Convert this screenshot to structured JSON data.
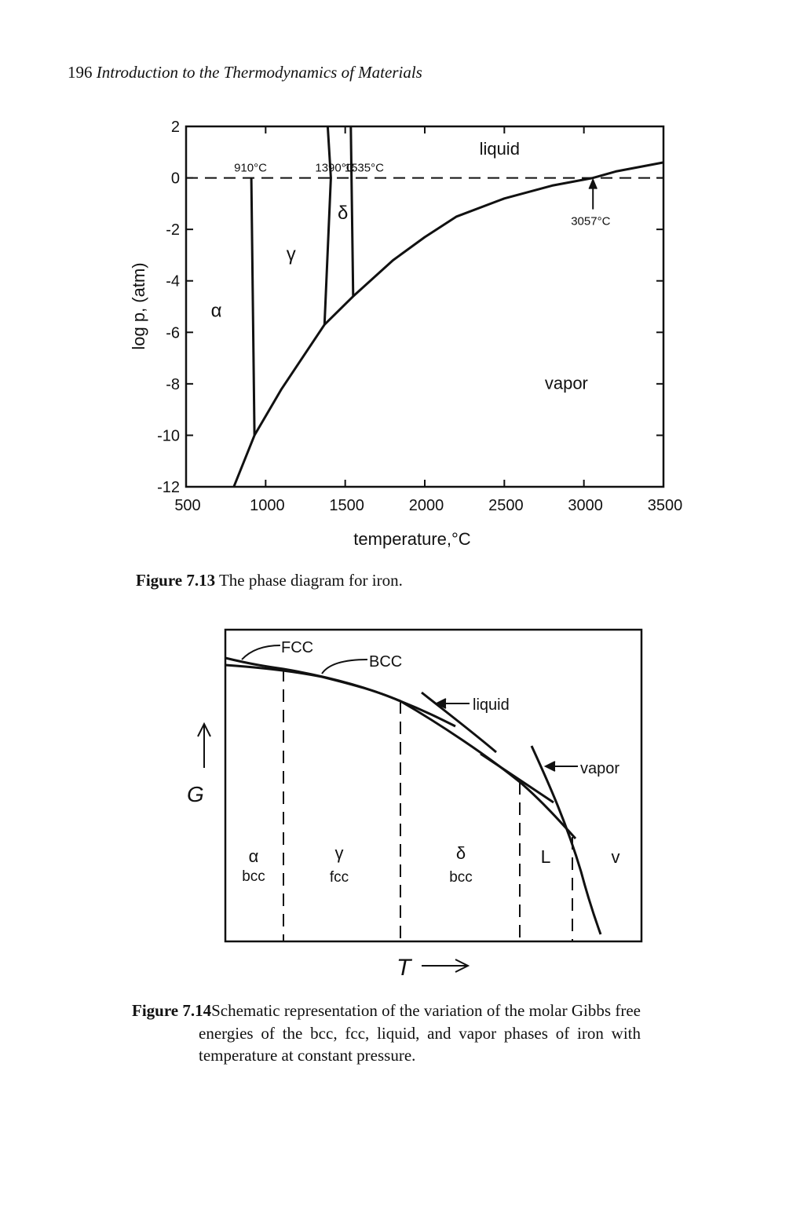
{
  "header": {
    "page_number": "196",
    "book_title": "Introduction to the Thermodynamics of Materials"
  },
  "figure_7_13": {
    "caption_label": "Figure 7.13",
    "caption_text": "The phase diagram for iron.",
    "chart_data": {
      "type": "line",
      "xlabel": "temperature,°C",
      "ylabel": "log p, (atm)",
      "xlim": [
        500,
        3500
      ],
      "ylim": [
        -12,
        2
      ],
      "x_ticks": [
        "500",
        "1000",
        "1500",
        "2000",
        "2500",
        "3000",
        "3500"
      ],
      "y_ticks": [
        "2",
        "0",
        "-2",
        "-4",
        "-6",
        "-8",
        "-10",
        "-12"
      ],
      "reference_line": {
        "y": 0,
        "style": "dashed"
      },
      "series": [
        {
          "x": [
            800,
            930,
            1100,
            1370,
            1550,
            1800,
            2000,
            2200,
            2500,
            2800,
            3057,
            3200,
            3500
          ],
          "y": [
            -12,
            -10,
            -8.2,
            -5.7,
            -4.6,
            -3.2,
            -2.3,
            -1.5,
            -0.8,
            -0.3,
            0,
            0.25,
            0.6
          ]
        },
        {
          "x": [
            910,
            930
          ],
          "y": [
            0,
            -10
          ]
        },
        {
          "x": [
            1390,
            1410,
            1370
          ],
          "y": [
            2,
            0,
            -5.7
          ]
        },
        {
          "x": [
            1535,
            1550
          ],
          "y": [
            2,
            -4.6
          ]
        }
      ],
      "annotations": [
        {
          "text": "910°C",
          "x": 910,
          "y": 0
        },
        {
          "text": "1390°C",
          "x": 1390,
          "y": 0
        },
        {
          "text": "1535°C",
          "x": 1535,
          "y": 0
        },
        {
          "text": "3057°C",
          "x": 3057,
          "y": 0
        }
      ],
      "region_labels": [
        "liquid",
        "δ",
        "γ",
        "α",
        "vapor"
      ]
    }
  },
  "figure_7_14": {
    "caption_label": "Figure 7.14",
    "caption_text": "Schematic representation of the variation of the molar Gibbs free energies of the bcc, fcc, liquid, and vapor phases of iron with temperature at constant pressure.",
    "axis_y": "G",
    "axis_x": "T",
    "curve_labels": [
      "FCC",
      "BCC",
      "liquid",
      "vapor"
    ],
    "regions": [
      {
        "phase": "α",
        "structure": "bcc"
      },
      {
        "phase": "γ",
        "structure": "fcc"
      },
      {
        "phase": "δ",
        "structure": "bcc"
      },
      {
        "phase": "L",
        "structure": ""
      },
      {
        "phase": "v",
        "structure": ""
      }
    ]
  }
}
